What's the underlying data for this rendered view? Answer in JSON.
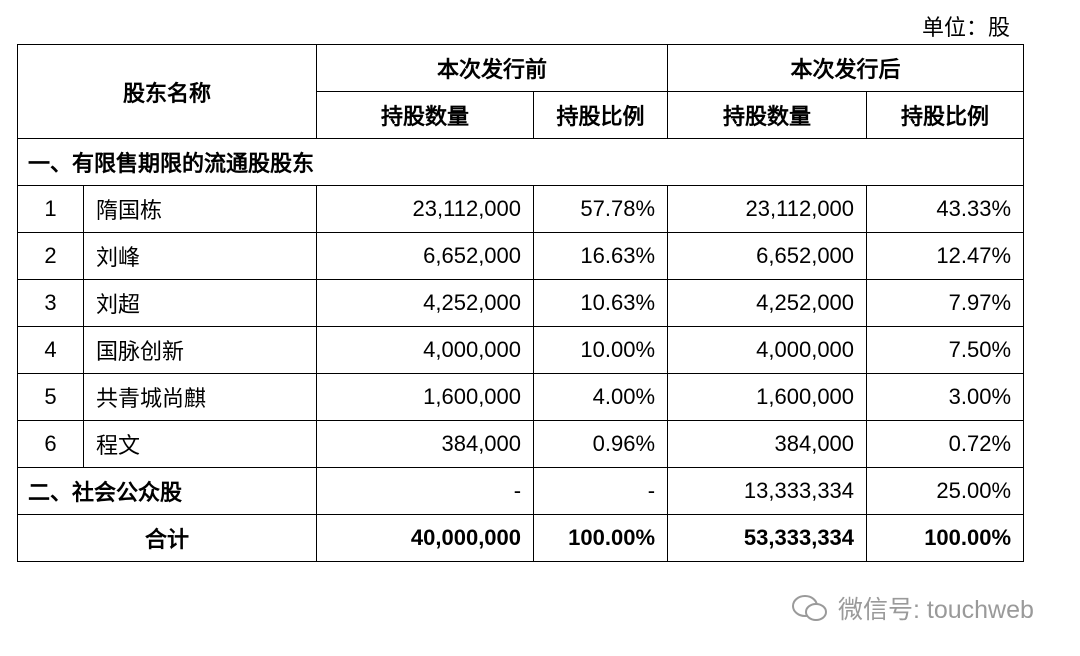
{
  "unit": "单位：股",
  "table": {
    "header": {
      "name": "股东名称",
      "before": "本次发行前",
      "after": "本次发行后",
      "sub": [
        "持股数量",
        "持股比例",
        "持股数量",
        "持股比例"
      ]
    },
    "section1": "一、有限售期限的流通股股东",
    "rows": [
      [
        "1",
        "隋国栋",
        "23,112,000",
        "57.78%",
        "23,112,000",
        "43.33%"
      ],
      [
        "2",
        "刘峰",
        "6,652,000",
        "16.63%",
        "6,652,000",
        "12.47%"
      ],
      [
        "3",
        "刘超",
        "4,252,000",
        "10.63%",
        "4,252,000",
        "7.97%"
      ],
      [
        "4",
        "国脉创新",
        "4,000,000",
        "10.00%",
        "4,000,000",
        "7.50%"
      ],
      [
        "5",
        "共青城尚麒",
        "1,600,000",
        "4.00%",
        "1,600,000",
        "3.00%"
      ],
      [
        "6",
        "程文",
        "384,000",
        "0.96%",
        "384,000",
        "0.72%"
      ]
    ],
    "public": {
      "label": "二、社会公众股",
      "cells": [
        "-",
        "-",
        "13,333,334",
        "25.00%"
      ]
    },
    "total": {
      "label": "合计",
      "cells": [
        "40,000,000",
        "100.00%",
        "53,333,334",
        "100.00%"
      ]
    }
  },
  "watermark": "微信号: touchweb"
}
